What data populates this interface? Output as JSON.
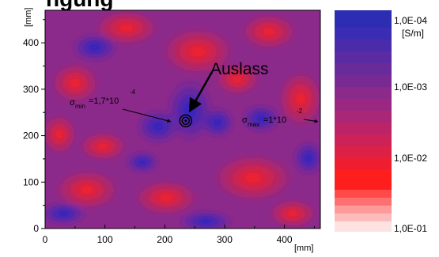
{
  "chart_data": {
    "type": "heatmap",
    "title_fragment": "ngung",
    "x_unit": "[mm]",
    "y_unit": "[mm]",
    "xlim": [
      0,
      460
    ],
    "ylim": [
      0,
      470
    ],
    "x_ticks": [
      0,
      100,
      200,
      300,
      400
    ],
    "y_ticks": [
      0,
      100,
      200,
      300,
      400
    ],
    "x_tick_labels": [
      "0",
      "100",
      "200",
      "300",
      "400"
    ],
    "y_tick_labels": [
      "0",
      "100",
      "200",
      "300",
      "400"
    ],
    "colorbar": {
      "unit": "[S/m]",
      "labels": [
        "1,0E-04",
        "1,0E-03",
        "1,0E-02",
        "1,0E-01"
      ],
      "low_color": "#2323c8",
      "mid_color": "#8c2a8c",
      "high_color": "#ff1e1e",
      "top_color": "#2d2db4",
      "bottom_color": "#fde2e2"
    },
    "annotations": {
      "outlet_label": "Auslass",
      "outlet_position": [
        235,
        232
      ],
      "sigma_min": {
        "symbol": "σ",
        "subscript": "min",
        "text": "=1,7*10",
        "exponent": "-4",
        "point": [
          210,
          232
        ]
      },
      "sigma_max": {
        "symbol": "σ",
        "subscript": "max",
        "text": "=1*10",
        "exponent": "-2",
        "point": [
          460,
          232
        ]
      }
    }
  }
}
